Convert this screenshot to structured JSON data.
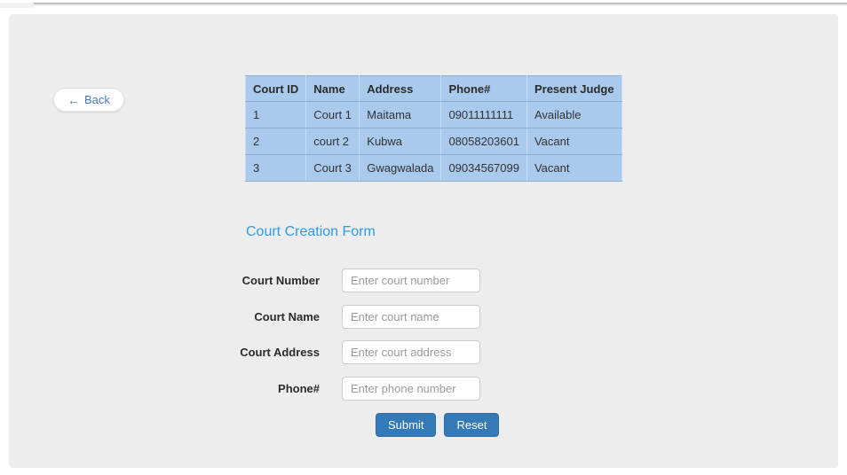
{
  "back_button": {
    "arrow": "←",
    "label": "Back"
  },
  "table": {
    "headers": [
      "Court ID",
      "Name",
      "Address",
      "Phone#",
      "Present Judge"
    ],
    "rows": [
      {
        "id": "1",
        "name": "Court 1",
        "address": "Maitama",
        "phone": "09011111111",
        "judge": "Available"
      },
      {
        "id": "2",
        "name": "court 2",
        "address": "Kubwa",
        "phone": "08058203601",
        "judge": "Vacant"
      },
      {
        "id": "3",
        "name": "Court 3",
        "address": "Gwagwalada",
        "phone": "09034567099",
        "judge": "Vacant"
      }
    ]
  },
  "form": {
    "title": "Court Creation Form",
    "fields": [
      {
        "label": "Court Number",
        "placeholder": "Enter court number",
        "value": ""
      },
      {
        "label": "Court Name",
        "placeholder": "Enter court name",
        "value": ""
      },
      {
        "label": "Court Address",
        "placeholder": "Enter court address",
        "value": ""
      },
      {
        "label": "Phone#",
        "placeholder": "Enter phone number",
        "value": ""
      }
    ],
    "submit_label": "Submit",
    "reset_label": "Reset"
  },
  "colors": {
    "panel_bg": "#ededed",
    "table_bg": "#a9caec",
    "title_blue": "#2d9be5",
    "button_blue": "#337ab7"
  }
}
